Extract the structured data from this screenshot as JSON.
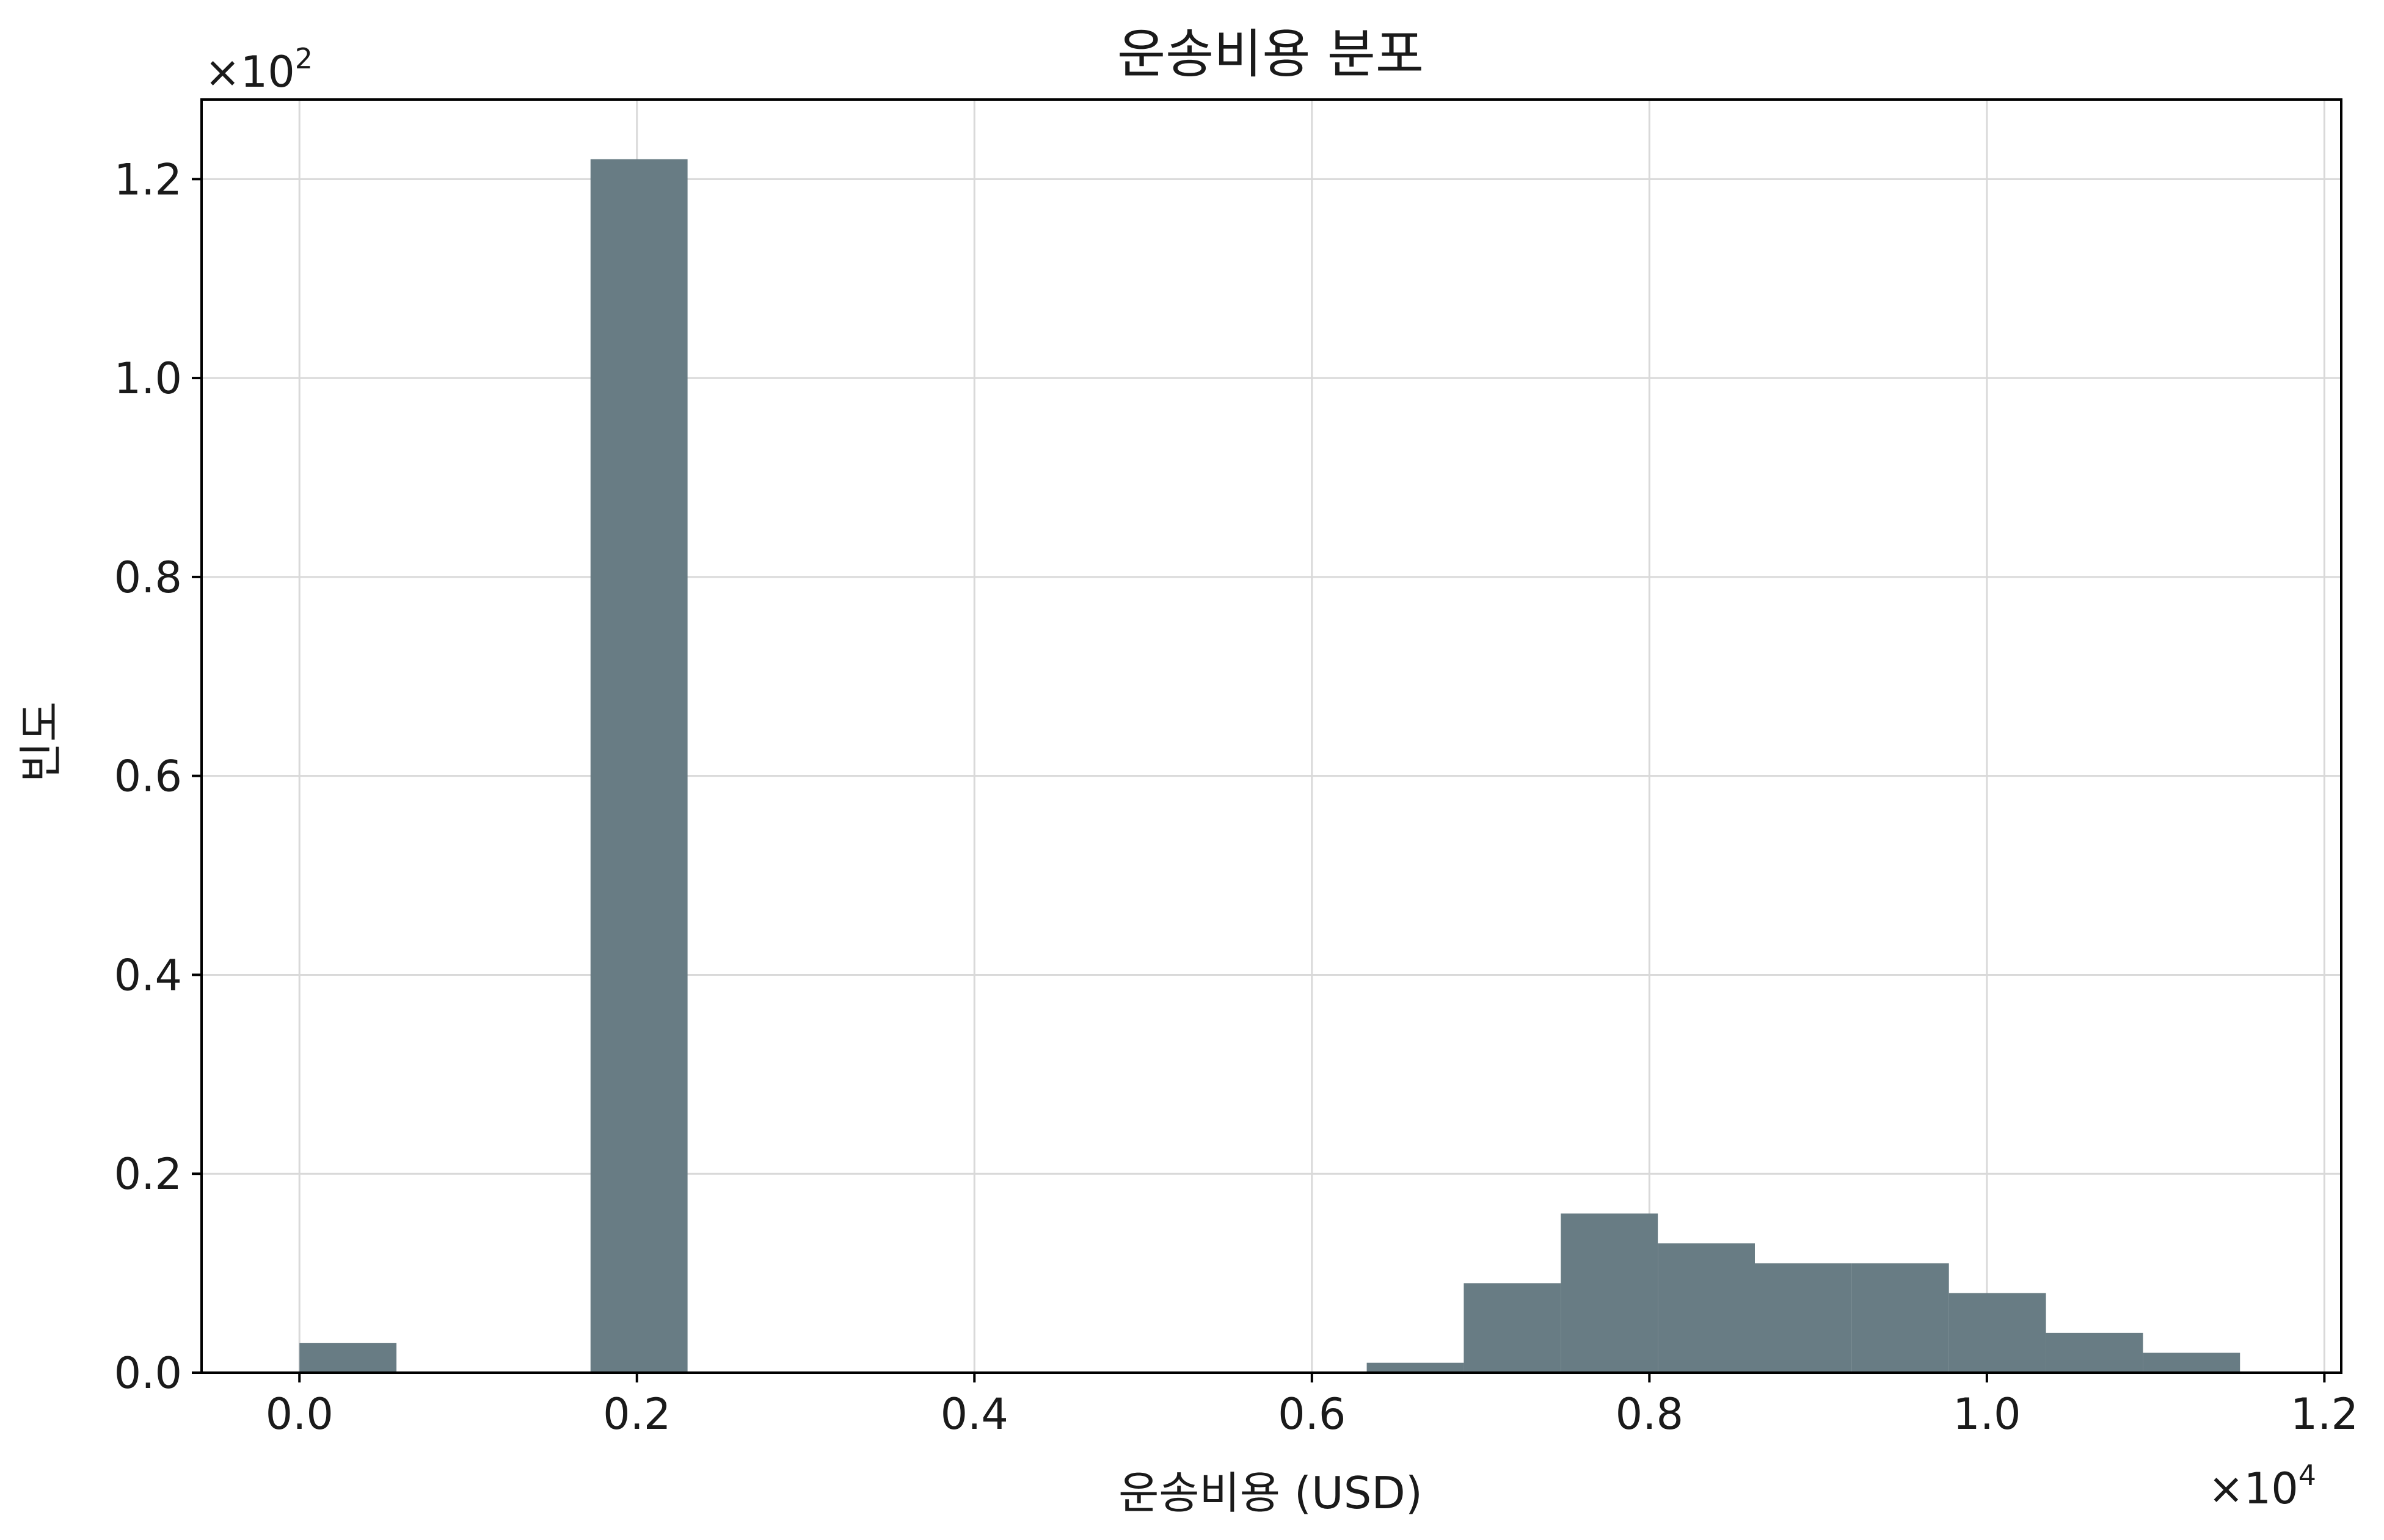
{
  "chart_data": {
    "type": "histogram",
    "title": "운송비용 분포",
    "xlabel": "운송비용 (USD)",
    "ylabel": "빈도",
    "x_scale_label": {
      "base": "×10",
      "exp": "4"
    },
    "y_scale_label": {
      "base": "×10",
      "exp": "2"
    },
    "xlim": [
      -0.058,
      1.21
    ],
    "ylim": [
      0,
      1.28
    ],
    "x_ticks": [
      0.0,
      0.2,
      0.4,
      0.6,
      0.8,
      1.0,
      1.2
    ],
    "x_tick_labels": [
      "0.0",
      "0.2",
      "0.4",
      "0.6",
      "0.8",
      "1.0",
      "1.2"
    ],
    "y_ticks": [
      0.0,
      0.2,
      0.4,
      0.6,
      0.8,
      1.0,
      1.2
    ],
    "y_tick_labels": [
      "0.0",
      "0.2",
      "0.4",
      "0.6",
      "0.8",
      "1.0",
      "1.2"
    ],
    "grid": true,
    "bar_color": "#687c84",
    "bins": [
      {
        "x0": 0.0,
        "x1": 0.0575,
        "value": 0.03
      },
      {
        "x0": 0.1725,
        "x1": 0.23,
        "value": 1.22
      },
      {
        "x0": 0.6325,
        "x1": 0.69,
        "value": 0.01
      },
      {
        "x0": 0.69,
        "x1": 0.7475,
        "value": 0.09
      },
      {
        "x0": 0.7475,
        "x1": 0.805,
        "value": 0.16
      },
      {
        "x0": 0.805,
        "x1": 0.8625,
        "value": 0.13
      },
      {
        "x0": 0.8625,
        "x1": 0.92,
        "value": 0.11
      },
      {
        "x0": 0.92,
        "x1": 0.9775,
        "value": 0.11
      },
      {
        "x0": 0.9775,
        "x1": 1.035,
        "value": 0.08
      },
      {
        "x0": 1.035,
        "x1": 1.0925,
        "value": 0.04
      },
      {
        "x0": 1.0925,
        "x1": 1.15,
        "value": 0.02
      }
    ]
  }
}
